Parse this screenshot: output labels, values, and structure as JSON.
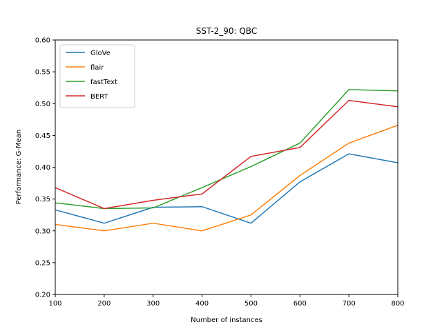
{
  "chart_data": {
    "type": "line",
    "title": "SST-2_90: QBC",
    "xlabel": "Number of instances",
    "ylabel": "Performance: G-Mean",
    "x": [
      100,
      200,
      300,
      400,
      500,
      600,
      700,
      800
    ],
    "xlim": [
      100,
      800
    ],
    "ylim": [
      0.2,
      0.6
    ],
    "xticks": [
      "100",
      "200",
      "300",
      "400",
      "500",
      "600",
      "700",
      "800"
    ],
    "yticks": [
      "0.20",
      "0.25",
      "0.30",
      "0.35",
      "0.40",
      "0.45",
      "0.50",
      "0.55",
      "0.60"
    ],
    "grid": false,
    "legend": "top-left",
    "series": [
      {
        "name": "GloVe",
        "color": "#1f77b4",
        "values": [
          0.333,
          0.312,
          0.337,
          0.338,
          0.312,
          0.377,
          0.421,
          0.407
        ]
      },
      {
        "name": "flair",
        "color": "#ff7f0e",
        "values": [
          0.31,
          0.3,
          0.312,
          0.3,
          0.325,
          0.387,
          0.438,
          0.466
        ]
      },
      {
        "name": "fastText",
        "color": "#2ca02c",
        "values": [
          0.344,
          0.335,
          0.336,
          0.368,
          0.401,
          0.438,
          0.522,
          0.52
        ]
      },
      {
        "name": "BERT",
        "color": "#d62728",
        "values": [
          0.368,
          0.335,
          0.348,
          0.358,
          0.417,
          0.431,
          0.505,
          0.495
        ]
      }
    ]
  }
}
